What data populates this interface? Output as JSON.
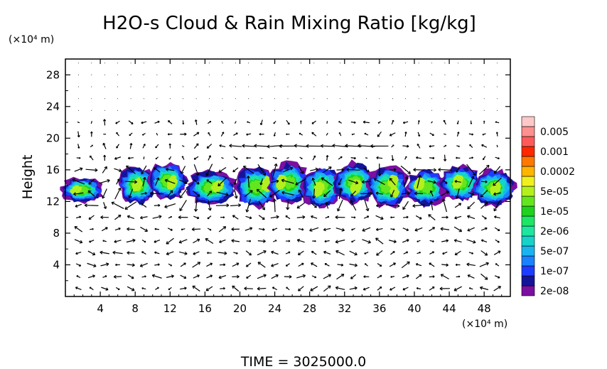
{
  "chart_data": {
    "type": "heatmap",
    "title": "H2O-s Cloud & Rain Mixing Ratio [kg/kg]",
    "ylabel": "Height",
    "x_unit": "(×10⁴ m)",
    "y_unit": "(×10⁴ m)",
    "footer": "TIME = 3025000.0",
    "xlim": [
      0,
      51
    ],
    "ylim": [
      0,
      30
    ],
    "x_ticks": [
      4,
      8,
      12,
      16,
      20,
      24,
      28,
      32,
      36,
      40,
      44,
      48
    ],
    "y_ticks": [
      4,
      8,
      12,
      16,
      20,
      24,
      28
    ],
    "grid": false,
    "colorbar": {
      "position": "right",
      "levels": [
        {
          "label": "2e-08",
          "color": "#7a0fa0"
        },
        {
          "label": "",
          "color": "#14149a"
        },
        {
          "label": "1e-07",
          "color": "#1e3cff"
        },
        {
          "label": "",
          "color": "#1a82ff"
        },
        {
          "label": "5e-07",
          "color": "#19b4f0"
        },
        {
          "label": "",
          "color": "#16d2c8"
        },
        {
          "label": "2e-06",
          "color": "#1ee6a0"
        },
        {
          "label": "",
          "color": "#1ee664"
        },
        {
          "label": "1e-05",
          "color": "#1ed21e"
        },
        {
          "label": "",
          "color": "#64e61e"
        },
        {
          "label": "5e-05",
          "color": "#b4f01e"
        },
        {
          "label": "",
          "color": "#f0f01e"
        },
        {
          "label": "0.0002",
          "color": "#ffb400"
        },
        {
          "label": "",
          "color": "#ff7800"
        },
        {
          "label": "0.001",
          "color": "#ff2800"
        },
        {
          "label": "",
          "color": "#ff5a5a"
        },
        {
          "label": "0.005",
          "color": "#ff9090"
        },
        {
          "label": "",
          "color": "#ffc8c8"
        }
      ]
    },
    "cloud_regions": [
      {
        "x": [
          0,
          3.8
        ],
        "y": [
          12.2,
          15.4
        ],
        "peak": 5e-06
      },
      {
        "x": [
          6.5,
          13.5
        ],
        "y": [
          12.0,
          16.8
        ],
        "peak": 5e-05
      },
      {
        "x": [
          14.5,
          19.0
        ],
        "y": [
          12.0,
          16.2
        ],
        "peak": 2e-05
      },
      {
        "x": [
          20.0,
          38.8
        ],
        "y": [
          11.6,
          16.8
        ],
        "peak": 5e-05
      },
      {
        "x": [
          39.5,
          51
        ],
        "y": [
          11.8,
          16.4
        ],
        "peak": 2e-05
      }
    ]
  }
}
